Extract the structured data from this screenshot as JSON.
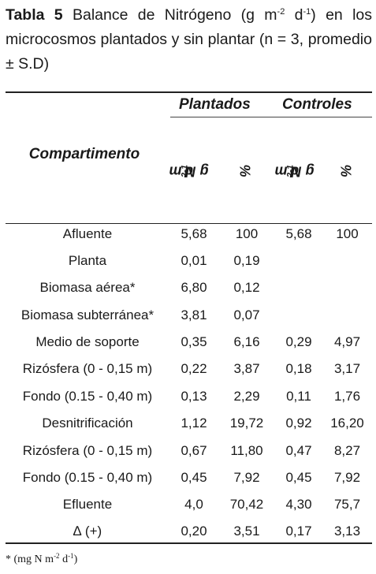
{
  "caption": {
    "label": "Tabla 5",
    "line1_text": "Balance de Nitrógeno (g m",
    "sup1": "-2",
    "mid": "d",
    "sup2": "-1",
    "line1_end": ") en los",
    "rest": "microcosmos plantados y sin plantar (n = 3, promedio ± S.D)"
  },
  "header": {
    "group_planted": "Plantados",
    "group_controls": "Controles",
    "compartment": "Compartimento",
    "unit_main": "g N m",
    "unit_sup1": "2",
    "unit_mid": " d",
    "unit_sup2": "-1",
    "percent": "%"
  },
  "rows": [
    [
      "Afluente",
      "5,68",
      "100",
      "5,68",
      "100"
    ],
    [
      "Planta",
      "0,01",
      "0,19",
      "",
      ""
    ],
    [
      "Biomasa aérea*",
      "6,80",
      "0,12",
      "",
      ""
    ],
    [
      "Biomasa subterránea*",
      "3,81",
      "0,07",
      "",
      ""
    ],
    [
      "Medio de soporte",
      "0,35",
      "6,16",
      "0,29",
      "4,97"
    ],
    [
      "Rizósfera (0 - 0,15 m)",
      "0,22",
      "3,87",
      "0,18",
      "3,17"
    ],
    [
      "Fondo (0.15 - 0,40 m)",
      "0,13",
      "2,29",
      "0,11",
      "1,76"
    ],
    [
      "Desnitrificación",
      "1,12",
      "19,72",
      "0,92",
      "16,20"
    ],
    [
      "Rizósfera (0 - 0,15 m)",
      "0,67",
      "11,80",
      "0,47",
      "8,27"
    ],
    [
      "Fondo (0.15 - 0,40 m)",
      "0,45",
      "7,92",
      "0,45",
      "7,92"
    ],
    [
      "Efluente",
      "4,0",
      "70,42",
      "4,30",
      "75,7"
    ],
    [
      "∆ (+)",
      "0,20",
      "3,51",
      "0,17",
      "3,13"
    ]
  ],
  "footnote": {
    "text": "* (mg N m",
    "sup1": "-2",
    "mid": " d",
    "sup2": "-1",
    "end": ")"
  }
}
